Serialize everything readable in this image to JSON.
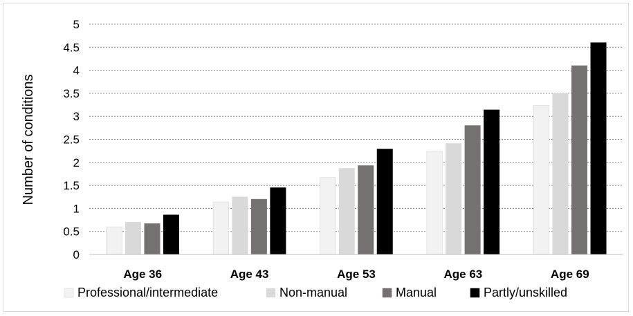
{
  "chart_data": {
    "type": "bar",
    "title": "",
    "xlabel": "",
    "ylabel": "Number of conditions",
    "ylim": [
      0,
      5
    ],
    "yticks": [
      "0",
      "0.5",
      "1",
      "1.5",
      "2",
      "2.5",
      "3",
      "3.5",
      "4",
      "4.5",
      "5"
    ],
    "grid": "horizontal dotted",
    "legend_position": "bottom",
    "categories": [
      "Age 36",
      "Age 43",
      "Age 53",
      "Age 63",
      "Age 69"
    ],
    "series": [
      {
        "name": "Professional/intermediate",
        "color": "#f2f2f2",
        "values": [
          0.6,
          1.14,
          1.67,
          2.25,
          3.24
        ]
      },
      {
        "name": "Non-manual",
        "color": "#d9d9d9",
        "values": [
          0.7,
          1.25,
          1.87,
          2.41,
          3.5
        ]
      },
      {
        "name": "Manual",
        "color": "#767171",
        "values": [
          0.67,
          1.2,
          1.93,
          2.8,
          4.1
        ]
      },
      {
        "name": "Partly/unskilled",
        "color": "#000000",
        "values": [
          0.86,
          1.45,
          2.29,
          3.14,
          4.6
        ]
      }
    ]
  }
}
